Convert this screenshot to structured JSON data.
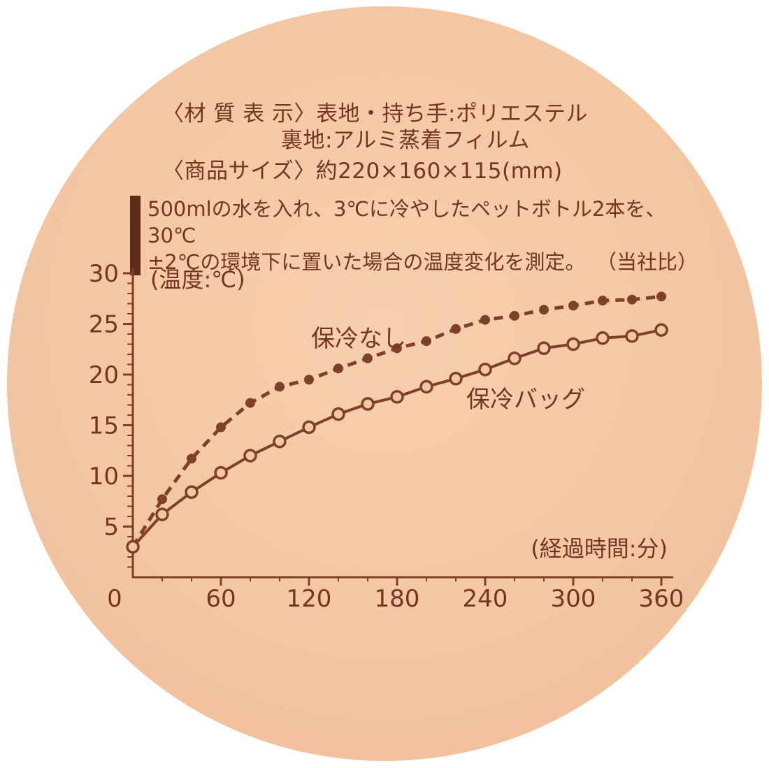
{
  "colors": {
    "background": "#f4c6a3",
    "text": "#733721",
    "line": "#7e4128",
    "bar": "#5f2a16"
  },
  "header": {
    "material_line1": "〈材 質 表 示〉表地・持ち手:ポリエステル",
    "material_line2": "裏地:アルミ蒸着フィルム",
    "size_line": "〈商品サイズ〉約220×160×115(mm)"
  },
  "note": {
    "line1": "500mlの水を入れ、3℃に冷やしたペットボトル2本を、30℃",
    "line2": "±2℃の環境下に置いた場合の温度変化を測定。",
    "line2_suffix": "（当社比）"
  },
  "chart_data": {
    "type": "line",
    "title": "",
    "ylabel": "(温度:℃)",
    "xlabel": "(経過時間:分)",
    "xlim": [
      0,
      370
    ],
    "ylim": [
      0,
      30
    ],
    "x_ticks": [
      0,
      60,
      120,
      180,
      240,
      300,
      360
    ],
    "y_ticks": [
      5,
      10,
      15,
      20,
      25,
      30
    ],
    "grid": false,
    "legend_position": "inline-annotations",
    "x": [
      0,
      20,
      40,
      60,
      80,
      100,
      120,
      140,
      160,
      180,
      200,
      220,
      240,
      260,
      280,
      300,
      320,
      340,
      360
    ],
    "series": [
      {
        "name": "保冷なし",
        "line_style": "dashed",
        "marker": "filled-dot",
        "values": [
          3,
          7.7,
          11.7,
          14.8,
          17.2,
          18.8,
          19.5,
          20.6,
          21.6,
          22.6,
          23.3,
          24.5,
          25.4,
          25.8,
          26.4,
          26.8,
          27.3,
          27.4,
          27.7
        ]
      },
      {
        "name": "保冷バッグ",
        "line_style": "solid",
        "marker": "open-circle",
        "values": [
          3,
          6.2,
          8.4,
          10.3,
          12.0,
          13.4,
          14.8,
          16.1,
          17.1,
          17.8,
          18.8,
          19.6,
          20.5,
          21.6,
          22.6,
          23.0,
          23.6,
          23.8,
          24.4
        ]
      }
    ]
  }
}
